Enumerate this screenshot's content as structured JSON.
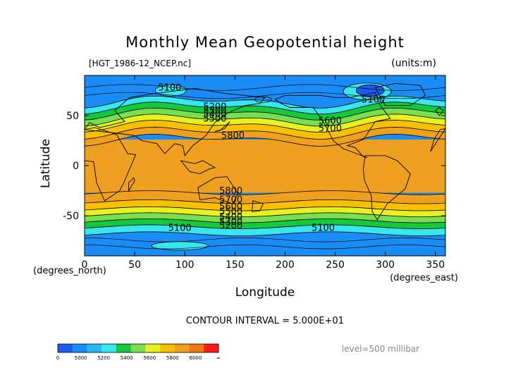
{
  "chart_data": {
    "type": "heatmap",
    "title": "Monthly Mean Geopotential height",
    "file_label": "[HGT_1986-12_NCEP.nc]",
    "units_label": "(units:m)",
    "xlabel": "Longitude",
    "ylabel": "Latitude",
    "x_unit_label": "(degrees_east)",
    "y_unit_label": "(degrees_north)",
    "xlim": [
      0,
      360
    ],
    "ylim": [
      -90,
      90
    ],
    "x_ticks": [
      0,
      50,
      100,
      150,
      200,
      250,
      300,
      350
    ],
    "y_ticks": [
      -50,
      0,
      50
    ],
    "contour_interval_text": "CONTOUR INTERVAL = 5.000E+01",
    "level_text": "level=500 millibar",
    "colorbar": {
      "colors": [
        "#1a5cf0",
        "#1a8cf5",
        "#2ab8f5",
        "#38e6f0",
        "#18c83c",
        "#78e050",
        "#e8f020",
        "#f8c000",
        "#f0a020",
        "#f07810",
        "#ff1a1a"
      ],
      "labels": [
        "0",
        "5000",
        "5200",
        "5400",
        "5600",
        "5800",
        "6000",
        "∞"
      ]
    },
    "contour_labels": [
      {
        "text": "5100",
        "lon": 85,
        "lat": 75
      },
      {
        "text": "5100",
        "lon": 288,
        "lat": 63
      },
      {
        "text": "5200",
        "lon": 130,
        "lat": 56
      },
      {
        "text": "5300",
        "lon": 130,
        "lat": 52
      },
      {
        "text": "5400",
        "lon": 130,
        "lat": 48
      },
      {
        "text": "5500",
        "lon": 130,
        "lat": 44
      },
      {
        "text": "5600",
        "lon": 245,
        "lat": 42
      },
      {
        "text": "5700",
        "lon": 245,
        "lat": 34
      },
      {
        "text": "5800",
        "lon": 148,
        "lat": 27
      },
      {
        "text": "5800",
        "lon": 146,
        "lat": -28
      },
      {
        "text": "5700",
        "lon": 146,
        "lat": -37
      },
      {
        "text": "5600",
        "lon": 146,
        "lat": -44
      },
      {
        "text": "5500",
        "lon": 146,
        "lat": -49
      },
      {
        "text": "5400",
        "lon": 146,
        "lat": -54
      },
      {
        "text": "5300",
        "lon": 146,
        "lat": -59
      },
      {
        "text": "5200",
        "lon": 146,
        "lat": -63
      },
      {
        "text": "5100",
        "lon": 95,
        "lat": -65
      },
      {
        "text": "5100",
        "lon": 238,
        "lat": -65
      }
    ]
  }
}
